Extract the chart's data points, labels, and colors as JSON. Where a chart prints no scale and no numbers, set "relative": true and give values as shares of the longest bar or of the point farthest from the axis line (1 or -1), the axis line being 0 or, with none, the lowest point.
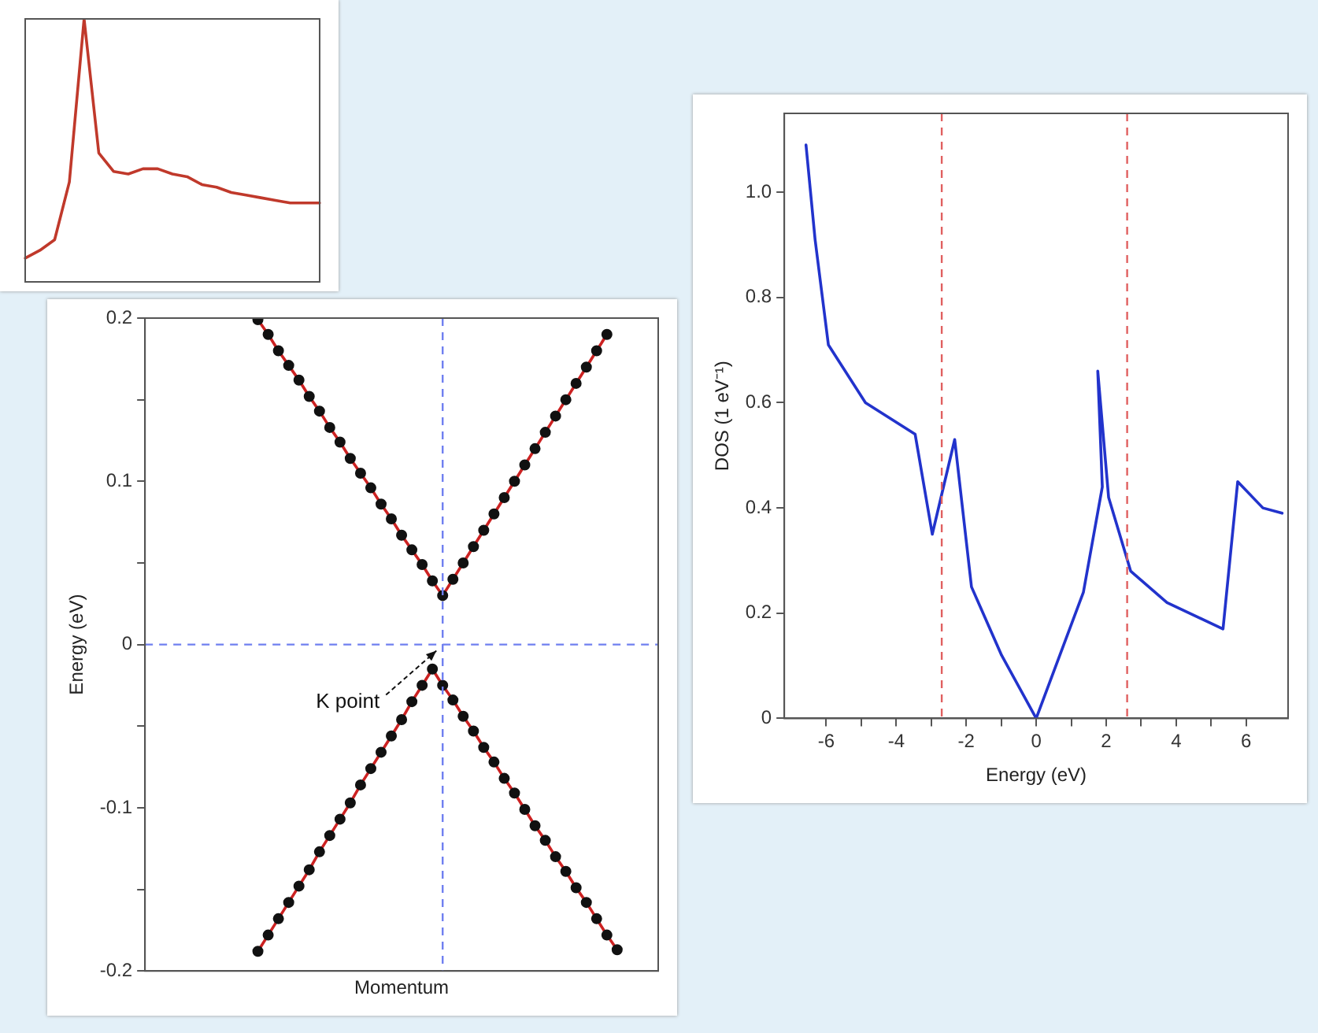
{
  "chart_data": [
    {
      "type": "line",
      "relative": true,
      "tick_labels": false,
      "categories": [
        null,
        null,
        null,
        null,
        null,
        null,
        null,
        null,
        null,
        null,
        null,
        null,
        null,
        null,
        null,
        null,
        null,
        null,
        null,
        null,
        null
      ],
      "series": [
        {
          "color": "#c0392b",
          "values": [
            0.09,
            0.12,
            0.16,
            0.38,
            1,
            0.49,
            0.42,
            0.41,
            0.43,
            0.43,
            0.41,
            0.4,
            0.37,
            0.36,
            0.34,
            0.33,
            0.32,
            0.31,
            0.3,
            0.3,
            0.3
          ]
        }
      ],
      "marker": "none"
    },
    {
      "type": "line",
      "xlabel": "Momentum",
      "ylabel": "Energy (eV)",
      "tick_labels": "y",
      "categories": [
        null,
        null,
        null,
        null,
        null,
        null,
        null,
        null,
        null,
        null,
        null,
        null,
        null,
        null,
        null,
        null,
        null,
        null,
        null,
        null,
        null,
        null,
        null,
        null,
        null,
        null,
        null,
        null,
        null,
        null,
        null,
        null,
        null,
        null,
        null,
        null,
        null,
        null,
        null,
        null,
        null,
        null,
        null,
        null,
        null,
        null,
        null,
        null,
        null,
        null,
        null
      ],
      "ylim": [
        -0.2,
        0.2
      ],
      "yticks": [
        -0.2,
        {
          "value": -0.15,
          "label": null
        },
        -0.1,
        {
          "value": -0.05,
          "label": null
        },
        0,
        {
          "value": 0.05,
          "label": null
        },
        0.1,
        {
          "value": 0.15,
          "label": null
        },
        0.2
      ],
      "marker": "circle",
      "series": [
        {
          "color": "#cc2222",
          "values": [
            null,
            null,
            null,
            null,
            null,
            null,
            null,
            null,
            null,
            null,
            null,
            0.199,
            0.19,
            0.18,
            0.171,
            0.162,
            0.152,
            0.143,
            0.133,
            0.124,
            0.114,
            0.105,
            0.096,
            0.086,
            0.077,
            0.067,
            0.058,
            0.049,
            0.039,
            0.03,
            0.04,
            0.05,
            0.06,
            0.07,
            0.08,
            0.09,
            0.1,
            0.11,
            0.12,
            0.13,
            0.14,
            0.15,
            0.16,
            0.17,
            0.18,
            0.19,
            null,
            null,
            null,
            null,
            null
          ]
        },
        {
          "color": "#cc2222",
          "values": [
            null,
            null,
            null,
            null,
            null,
            null,
            null,
            null,
            null,
            null,
            null,
            -0.188,
            -0.178,
            -0.168,
            -0.158,
            -0.148,
            -0.138,
            -0.127,
            -0.117,
            -0.107,
            -0.097,
            -0.086,
            -0.076,
            -0.066,
            -0.056,
            -0.046,
            -0.035,
            -0.025,
            -0.015,
            -0.025,
            -0.034,
            -0.044,
            -0.053,
            -0.063,
            -0.072,
            -0.082,
            -0.091,
            -0.101,
            -0.111,
            -0.12,
            -0.13,
            -0.139,
            -0.149,
            -0.158,
            -0.168,
            -0.178,
            -0.187,
            null,
            null,
            null,
            null
          ]
        }
      ],
      "ref_lines": [
        {
          "axis": "y",
          "value": 0,
          "color": "#6f7ff0",
          "line_style": "dashed"
        }
      ],
      "annotations": [
        "K point"
      ]
    },
    {
      "type": "line",
      "xlabel": "Energy (eV)",
      "ylabel": "DOS (1 eV⁻¹)",
      "xlim": [
        -7.2,
        7.2
      ],
      "xticks": [
        -6,
        {
          "value": -5,
          "label": null
        },
        -4,
        {
          "value": -3,
          "label": null
        },
        -2,
        {
          "value": -1,
          "label": null
        },
        0,
        {
          "value": 1,
          "label": null
        },
        2,
        {
          "value": 3,
          "label": null
        },
        4,
        {
          "value": 5,
          "label": null
        },
        6
      ],
      "ylim": [
        0,
        1.15
      ],
      "yticks": [
        0,
        0.2,
        0.4,
        0.6,
        0.8,
        {
          "value": 1,
          "label": "1.0"
        }
      ],
      "marker": "none",
      "series": [
        {
          "color": "#2233cc",
          "x": [
            -6.58,
            -6.32,
            -5.94,
            -4.88,
            -3.46,
            -2.97,
            -2.33,
            -1.85,
            -0.99,
            0,
            1.35,
            1.89,
            1.76,
            2.07,
            2.7,
            3.74,
            5.34,
            5.76,
            6.48,
            7.03
          ],
          "values": [
            1.09,
            0.91,
            0.71,
            0.6,
            0.54,
            0.35,
            0.53,
            0.25,
            0.12,
            0,
            0.24,
            0.44,
            0.66,
            0.42,
            0.28,
            0.22,
            0.17,
            0.45,
            0.4,
            0.39
          ]
        }
      ],
      "ref_lines": [
        {
          "axis": "x",
          "value": -2.7,
          "color": "#e06060",
          "line_style": "dashed"
        },
        {
          "axis": "x",
          "value": 2.6,
          "color": "#e06060",
          "line_style": "dashed"
        }
      ]
    }
  ]
}
